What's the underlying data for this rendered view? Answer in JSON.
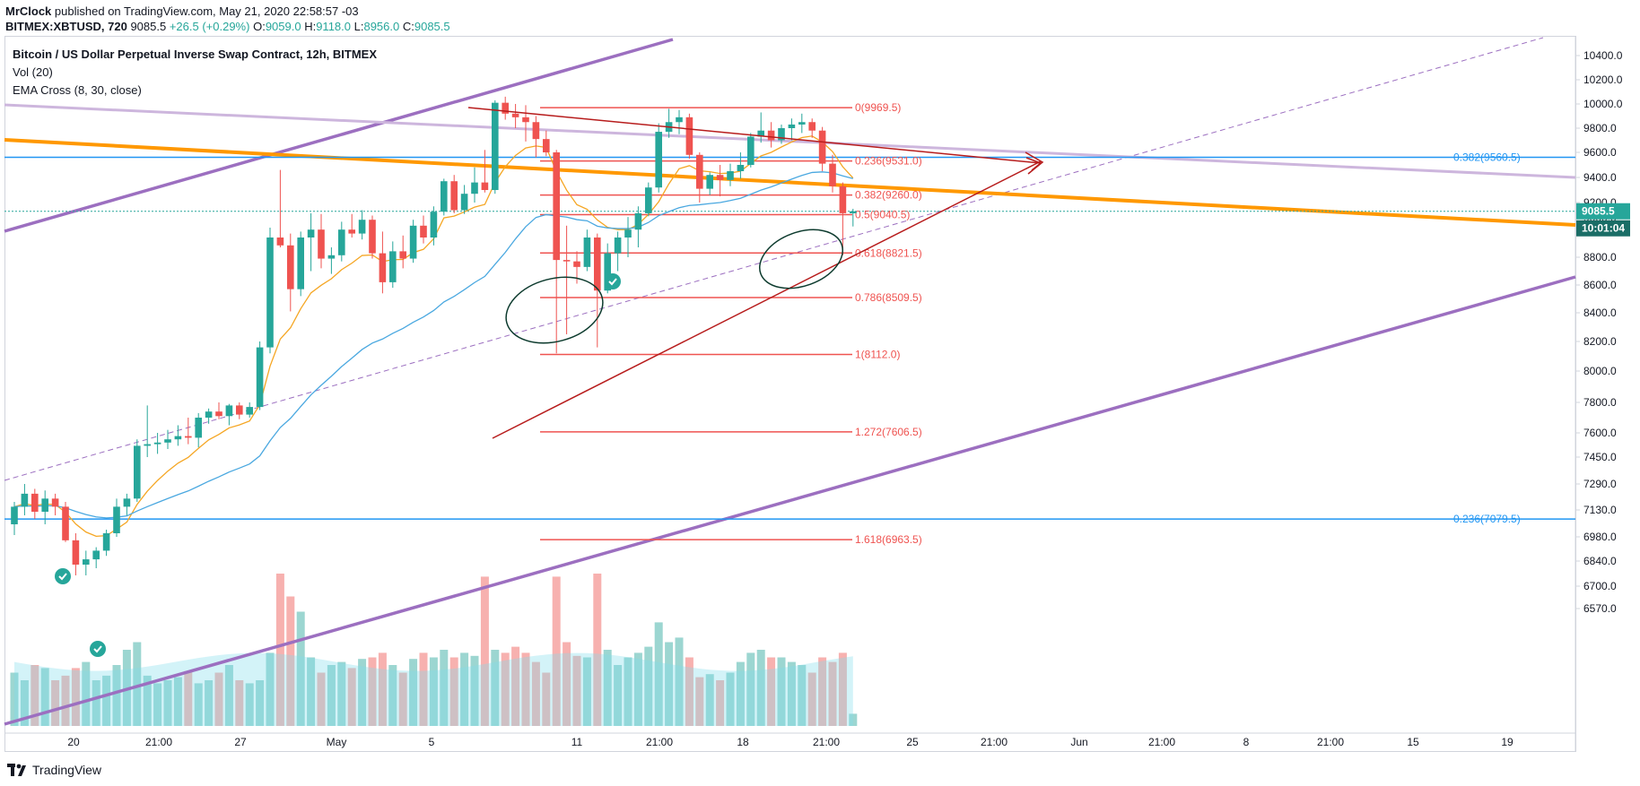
{
  "header": {
    "author": "MrClock",
    "published": "published on TradingView.com, May 21, 2020 22:58:57 -03",
    "symbol": "BITMEX:XBTUSD, 720",
    "last": "9085.5",
    "change": "+26.5 (+0.29%)",
    "o_label": "O:",
    "o": "9059.0",
    "h_label": "H:",
    "h": "9118.0",
    "l_label": "L:",
    "l": "8956.0",
    "c_label": "C:",
    "c": "9085.5"
  },
  "legend": {
    "title": "Bitcoin / US Dollar Perpetual Inverse Swap Contract, 12h, BITMEX",
    "vol": "Vol (20)",
    "ema": "EMA Cross (8, 30, close)"
  },
  "footer": {
    "brand": "TradingView"
  },
  "colors": {
    "up": "#26a69a",
    "down": "#ef5350",
    "fib": "#ef5350",
    "channel": "#9c6fc0",
    "orange": "#ff9800",
    "lilac": "#cdb6dd",
    "blue": "#2196f3",
    "ema_fast": "#f5a623",
    "ema_slow": "#4aa8e0",
    "trend": "#b71c1c"
  },
  "price_badge": {
    "price": "9085.5",
    "countdown": "10:01:04"
  },
  "chart_data": {
    "type": "candlestick",
    "title": "Bitcoin / US Dollar Perpetual Inverse Swap Contract, 12h, BITMEX",
    "interval": "12h",
    "y_ticks": [
      10400,
      10200,
      10000,
      9800,
      9600,
      9400,
      9200,
      9000,
      8800,
      8600,
      8400,
      8200,
      8000,
      7800,
      7600,
      7450,
      7290,
      7130,
      6980,
      6840,
      6700,
      6570
    ],
    "y_tick_labels": [
      "10400.0",
      "10200.0",
      "10000.0",
      "9800.0",
      "9600.0",
      "9400.0",
      "9200.0",
      "9000.0",
      "8800.0",
      "8600.0",
      "8400.0",
      "8200.0",
      "8000.0",
      "7800.0",
      "7600.0",
      "7450.0",
      "7290.0",
      "7130.0",
      "6980.0",
      "6840.0",
      "6700.0",
      "6570.0"
    ],
    "x_labels": [
      "20",
      "21:00",
      "27",
      "May",
      "5",
      "11",
      "21:00",
      "18",
      "21:00",
      "25",
      "21:00",
      "Jun",
      "21:00",
      "8",
      "21:00",
      "15",
      "19"
    ],
    "candles": [
      {
        "o": 7050,
        "h": 7180,
        "l": 6990,
        "c": 7150
      },
      {
        "o": 7150,
        "h": 7290,
        "l": 7100,
        "c": 7230
      },
      {
        "o": 7230,
        "h": 7260,
        "l": 7080,
        "c": 7120
      },
      {
        "o": 7120,
        "h": 7250,
        "l": 7050,
        "c": 7200
      },
      {
        "o": 7200,
        "h": 7230,
        "l": 7100,
        "c": 7150
      },
      {
        "o": 7150,
        "h": 7180,
        "l": 6950,
        "c": 6960
      },
      {
        "o": 6960,
        "h": 7000,
        "l": 6760,
        "c": 6820
      },
      {
        "o": 6820,
        "h": 6900,
        "l": 6760,
        "c": 6850
      },
      {
        "o": 6850,
        "h": 6920,
        "l": 6800,
        "c": 6900
      },
      {
        "o": 6900,
        "h": 7020,
        "l": 6870,
        "c": 7000
      },
      {
        "o": 7000,
        "h": 7200,
        "l": 6980,
        "c": 7150
      },
      {
        "o": 7150,
        "h": 7230,
        "l": 7100,
        "c": 7200
      },
      {
        "o": 7200,
        "h": 7560,
        "l": 7180,
        "c": 7520
      },
      {
        "o": 7520,
        "h": 7780,
        "l": 7450,
        "c": 7530
      },
      {
        "o": 7530,
        "h": 7600,
        "l": 7470,
        "c": 7540
      },
      {
        "o": 7540,
        "h": 7620,
        "l": 7500,
        "c": 7560
      },
      {
        "o": 7560,
        "h": 7650,
        "l": 7520,
        "c": 7580
      },
      {
        "o": 7580,
        "h": 7700,
        "l": 7530,
        "c": 7570
      },
      {
        "o": 7570,
        "h": 7730,
        "l": 7510,
        "c": 7700
      },
      {
        "o": 7700,
        "h": 7760,
        "l": 7660,
        "c": 7740
      },
      {
        "o": 7740,
        "h": 7800,
        "l": 7690,
        "c": 7710
      },
      {
        "o": 7710,
        "h": 7790,
        "l": 7650,
        "c": 7780
      },
      {
        "o": 7780,
        "h": 7800,
        "l": 7690,
        "c": 7720
      },
      {
        "o": 7720,
        "h": 7800,
        "l": 7700,
        "c": 7770
      },
      {
        "o": 7770,
        "h": 8200,
        "l": 7750,
        "c": 8160
      },
      {
        "o": 8160,
        "h": 8950,
        "l": 8120,
        "c": 8900
      },
      {
        "o": 8900,
        "h": 9460,
        "l": 8850,
        "c": 8860
      },
      {
        "o": 8860,
        "h": 8920,
        "l": 8410,
        "c": 8570
      },
      {
        "o": 8570,
        "h": 8930,
        "l": 8520,
        "c": 8900
      },
      {
        "o": 8900,
        "h": 9060,
        "l": 8700,
        "c": 8940
      },
      {
        "o": 8940,
        "h": 9050,
        "l": 8720,
        "c": 8790
      },
      {
        "o": 8790,
        "h": 8850,
        "l": 8680,
        "c": 8810
      },
      {
        "o": 8810,
        "h": 8980,
        "l": 8770,
        "c": 8940
      },
      {
        "o": 8940,
        "h": 9050,
        "l": 8900,
        "c": 8920
      },
      {
        "o": 8920,
        "h": 9100,
        "l": 8890,
        "c": 8990
      },
      {
        "o": 8990,
        "h": 9030,
        "l": 8790,
        "c": 8820
      },
      {
        "o": 8820,
        "h": 8930,
        "l": 8540,
        "c": 8620
      },
      {
        "o": 8620,
        "h": 8880,
        "l": 8580,
        "c": 8830
      },
      {
        "o": 8830,
        "h": 8910,
        "l": 8720,
        "c": 8790
      },
      {
        "o": 8790,
        "h": 8990,
        "l": 8760,
        "c": 8960
      },
      {
        "o": 8960,
        "h": 9030,
        "l": 8870,
        "c": 8900
      },
      {
        "o": 8900,
        "h": 9150,
        "l": 8860,
        "c": 9080
      },
      {
        "o": 9080,
        "h": 9390,
        "l": 9030,
        "c": 9370
      },
      {
        "o": 9370,
        "h": 9420,
        "l": 9060,
        "c": 9100
      },
      {
        "o": 9100,
        "h": 9340,
        "l": 9050,
        "c": 9270
      },
      {
        "o": 9270,
        "h": 9480,
        "l": 9200,
        "c": 9360
      },
      {
        "o": 9360,
        "h": 9620,
        "l": 9280,
        "c": 9300
      },
      {
        "o": 9300,
        "h": 10030,
        "l": 9270,
        "c": 10010
      },
      {
        "o": 10010,
        "h": 10060,
        "l": 9870,
        "c": 9920
      },
      {
        "o": 9920,
        "h": 10000,
        "l": 9800,
        "c": 9890
      },
      {
        "o": 9890,
        "h": 9990,
        "l": 9690,
        "c": 9850
      },
      {
        "o": 9850,
        "h": 9900,
        "l": 9560,
        "c": 9710
      },
      {
        "o": 9710,
        "h": 9780,
        "l": 9570,
        "c": 9600
      },
      {
        "o": 9600,
        "h": 9620,
        "l": 8120,
        "c": 8780
      },
      {
        "o": 8780,
        "h": 8960,
        "l": 8250,
        "c": 8770
      },
      {
        "o": 8770,
        "h": 8830,
        "l": 8610,
        "c": 8730
      },
      {
        "o": 8730,
        "h": 8940,
        "l": 8700,
        "c": 8900
      },
      {
        "o": 8900,
        "h": 8920,
        "l": 8160,
        "c": 8560
      },
      {
        "o": 8560,
        "h": 8870,
        "l": 8540,
        "c": 8820
      },
      {
        "o": 8820,
        "h": 8930,
        "l": 8700,
        "c": 8900
      },
      {
        "o": 8900,
        "h": 9010,
        "l": 8800,
        "c": 8940
      },
      {
        "o": 8940,
        "h": 9150,
        "l": 8850,
        "c": 9060
      },
      {
        "o": 9060,
        "h": 9360,
        "l": 9020,
        "c": 9320
      },
      {
        "o": 9320,
        "h": 9840,
        "l": 9280,
        "c": 9770
      },
      {
        "o": 9770,
        "h": 9960,
        "l": 9720,
        "c": 9850
      },
      {
        "o": 9850,
        "h": 9950,
        "l": 9750,
        "c": 9890
      },
      {
        "o": 9890,
        "h": 9920,
        "l": 9550,
        "c": 9580
      },
      {
        "o": 9580,
        "h": 9600,
        "l": 9200,
        "c": 9310
      },
      {
        "o": 9310,
        "h": 9440,
        "l": 9260,
        "c": 9420
      },
      {
        "o": 9420,
        "h": 9500,
        "l": 9250,
        "c": 9380
      },
      {
        "o": 9380,
        "h": 9510,
        "l": 9330,
        "c": 9450
      },
      {
        "o": 9450,
        "h": 9600,
        "l": 9390,
        "c": 9500
      },
      {
        "o": 9500,
        "h": 9760,
        "l": 9480,
        "c": 9730
      },
      {
        "o": 9730,
        "h": 9930,
        "l": 9680,
        "c": 9780
      },
      {
        "o": 9780,
        "h": 9850,
        "l": 9640,
        "c": 9700
      },
      {
        "o": 9700,
        "h": 9830,
        "l": 9670,
        "c": 9800
      },
      {
        "o": 9800,
        "h": 9880,
        "l": 9700,
        "c": 9830
      },
      {
        "o": 9830,
        "h": 9920,
        "l": 9760,
        "c": 9850
      },
      {
        "o": 9850,
        "h": 9880,
        "l": 9720,
        "c": 9780
      },
      {
        "o": 9780,
        "h": 9810,
        "l": 9450,
        "c": 9510
      },
      {
        "o": 9510,
        "h": 9580,
        "l": 9280,
        "c": 9330
      },
      {
        "o": 9330,
        "h": 9360,
        "l": 8810,
        "c": 9060
      },
      {
        "o": 9059,
        "h": 9118,
        "l": 8956,
        "c": 9085.5
      }
    ],
    "fib_levels": [
      {
        "ratio": "0",
        "price": 9969.5,
        "label": "0(9969.5)"
      },
      {
        "ratio": "0.236",
        "price": 9531.0,
        "label": "0.236(9531.0)"
      },
      {
        "ratio": "0.382",
        "price": 9260.0,
        "label": "0.382(9260.0)"
      },
      {
        "ratio": "0.5",
        "price": 9040.5,
        "label": "0.5(9040.5)"
      },
      {
        "ratio": "0.618",
        "price": 8821.5,
        "label": "0.618(8821.5)"
      },
      {
        "ratio": "0.786",
        "price": 8509.5,
        "label": "0.786(8509.5)"
      },
      {
        "ratio": "1",
        "price": 8112.0,
        "label": "1(8112.0)"
      },
      {
        "ratio": "1.272",
        "price": 7606.5,
        "label": "1.272(7606.5)"
      },
      {
        "ratio": "1.618",
        "price": 6963.5,
        "label": "1.618(6963.5)"
      }
    ],
    "blue_levels": [
      {
        "price": 9560.5,
        "label": "0.382(9560.5)"
      },
      {
        "price": 7079.5,
        "label": "0.236(7079.5)"
      }
    ]
  }
}
